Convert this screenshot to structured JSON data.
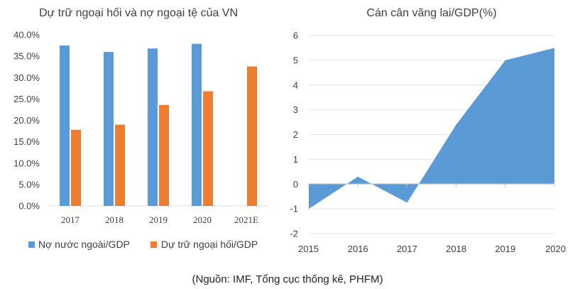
{
  "chart_data": [
    {
      "type": "bar",
      "title": "Dự trữ ngoại hối và nợ ngoại tệ của VN",
      "categories": [
        "2017",
        "2018",
        "2019",
        "2020",
        "2021E"
      ],
      "ylim": [
        0,
        0.4
      ],
      "yticks": [
        "40.0%",
        "35.0%",
        "30.0%",
        "25.0%",
        "20.0%",
        "15.0%",
        "10.0%",
        "5.0%",
        "0.0%"
      ],
      "legend_position": "bottom",
      "series": [
        {
          "name": "Nợ nước ngoài/GDP",
          "color": "#5b9bd5",
          "values": [
            0.375,
            0.36,
            0.368,
            0.379,
            null
          ]
        },
        {
          "name": "Dự trữ ngoại hối/GDP",
          "color": "#ed7d31",
          "values": [
            0.178,
            0.19,
            0.236,
            0.268,
            0.326
          ]
        }
      ]
    },
    {
      "type": "area",
      "title": "Cán cân vãng lai/GDP(%)",
      "x": [
        "2015",
        "2016",
        "2017",
        "2018",
        "2019",
        "2020"
      ],
      "ylim": [
        -2,
        6
      ],
      "yticks": [
        "6",
        "5",
        "4",
        "3",
        "2",
        "1",
        "0",
        "-1",
        "-2"
      ],
      "series": [
        {
          "name": "",
          "color": "#5b9bd5",
          "values": [
            -1.0,
            0.3,
            -0.75,
            2.4,
            5.0,
            5.5
          ]
        }
      ]
    }
  ],
  "footer": {
    "source": "(Nguồn: IMF, Tổng cục thống kê, PHFM)"
  }
}
